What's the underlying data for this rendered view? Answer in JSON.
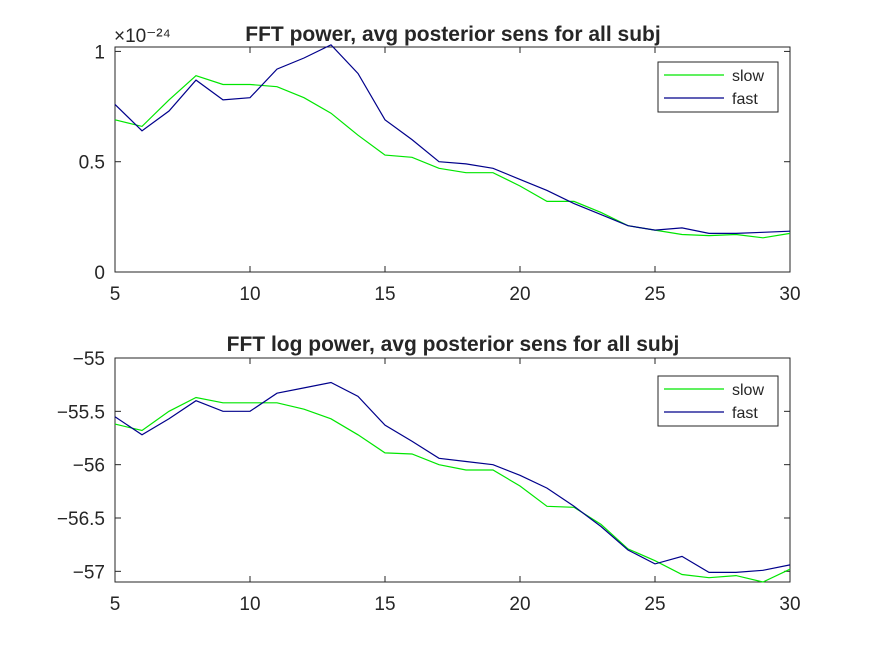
{
  "chart_data": [
    {
      "type": "line",
      "title": "FFT power, avg posterior sens for all subj",
      "xlabel": "",
      "ylabel": "",
      "exponent_label": "×10⁻²⁴",
      "xlim": [
        5,
        30
      ],
      "ylim": [
        0,
        1.02
      ],
      "x_ticks": [
        "5",
        "10",
        "15",
        "20",
        "25",
        "30"
      ],
      "y_ticks": [
        "0",
        "0.5",
        "1"
      ],
      "legend_position": "top-right",
      "grid": false,
      "x": [
        5,
        6,
        7,
        8,
        9,
        10,
        11,
        12,
        13,
        14,
        15,
        16,
        17,
        18,
        19,
        20,
        21,
        22,
        23,
        24,
        25,
        26,
        27,
        28,
        29,
        30
      ],
      "series": [
        {
          "name": "slow",
          "color": "#00e600",
          "values": [
            0.69,
            0.66,
            0.78,
            0.89,
            0.85,
            0.85,
            0.84,
            0.79,
            0.72,
            0.62,
            0.53,
            0.52,
            0.47,
            0.45,
            0.45,
            0.39,
            0.32,
            0.32,
            0.27,
            0.21,
            0.19,
            0.17,
            0.165,
            0.17,
            0.155,
            0.175
          ]
        },
        {
          "name": "fast",
          "color": "#00008b",
          "values": [
            0.76,
            0.64,
            0.73,
            0.87,
            0.78,
            0.79,
            0.92,
            0.97,
            1.03,
            0.9,
            0.69,
            0.6,
            0.5,
            0.49,
            0.47,
            0.42,
            0.37,
            0.31,
            0.26,
            0.21,
            0.19,
            0.2,
            0.175,
            0.175,
            0.18,
            0.185
          ]
        }
      ]
    },
    {
      "type": "line",
      "title": "FFT log power, avg posterior sens for all subj",
      "xlabel": "",
      "ylabel": "",
      "xlim": [
        5,
        30
      ],
      "ylim": [
        -57.1,
        -55
      ],
      "x_ticks": [
        "5",
        "10",
        "15",
        "20",
        "25",
        "30"
      ],
      "y_ticks": [
        "−55",
        "−55.5",
        "−56",
        "−56.5",
        "−57"
      ],
      "legend_position": "top-right",
      "grid": false,
      "x": [
        5,
        6,
        7,
        8,
        9,
        10,
        11,
        12,
        13,
        14,
        15,
        16,
        17,
        18,
        19,
        20,
        21,
        22,
        23,
        24,
        25,
        26,
        27,
        28,
        29,
        30
      ],
      "series": [
        {
          "name": "slow",
          "color": "#00e600",
          "values": [
            -55.62,
            -55.68,
            -55.5,
            -55.37,
            -55.42,
            -55.42,
            -55.42,
            -55.48,
            -55.57,
            -55.72,
            -55.89,
            -55.9,
            -56.0,
            -56.05,
            -56.05,
            -56.2,
            -56.39,
            -56.4,
            -56.56,
            -56.79,
            -56.9,
            -57.03,
            -57.06,
            -57.04,
            -57.1,
            -56.98
          ]
        },
        {
          "name": "fast",
          "color": "#00008b",
          "values": [
            -55.55,
            -55.72,
            -55.57,
            -55.4,
            -55.5,
            -55.5,
            -55.33,
            -55.28,
            -55.23,
            -55.36,
            -55.63,
            -55.78,
            -55.94,
            -55.97,
            -56.0,
            -56.1,
            -56.22,
            -56.39,
            -56.58,
            -56.8,
            -56.93,
            -56.86,
            -57.01,
            -57.01,
            -56.99,
            -56.94
          ]
        }
      ]
    }
  ]
}
